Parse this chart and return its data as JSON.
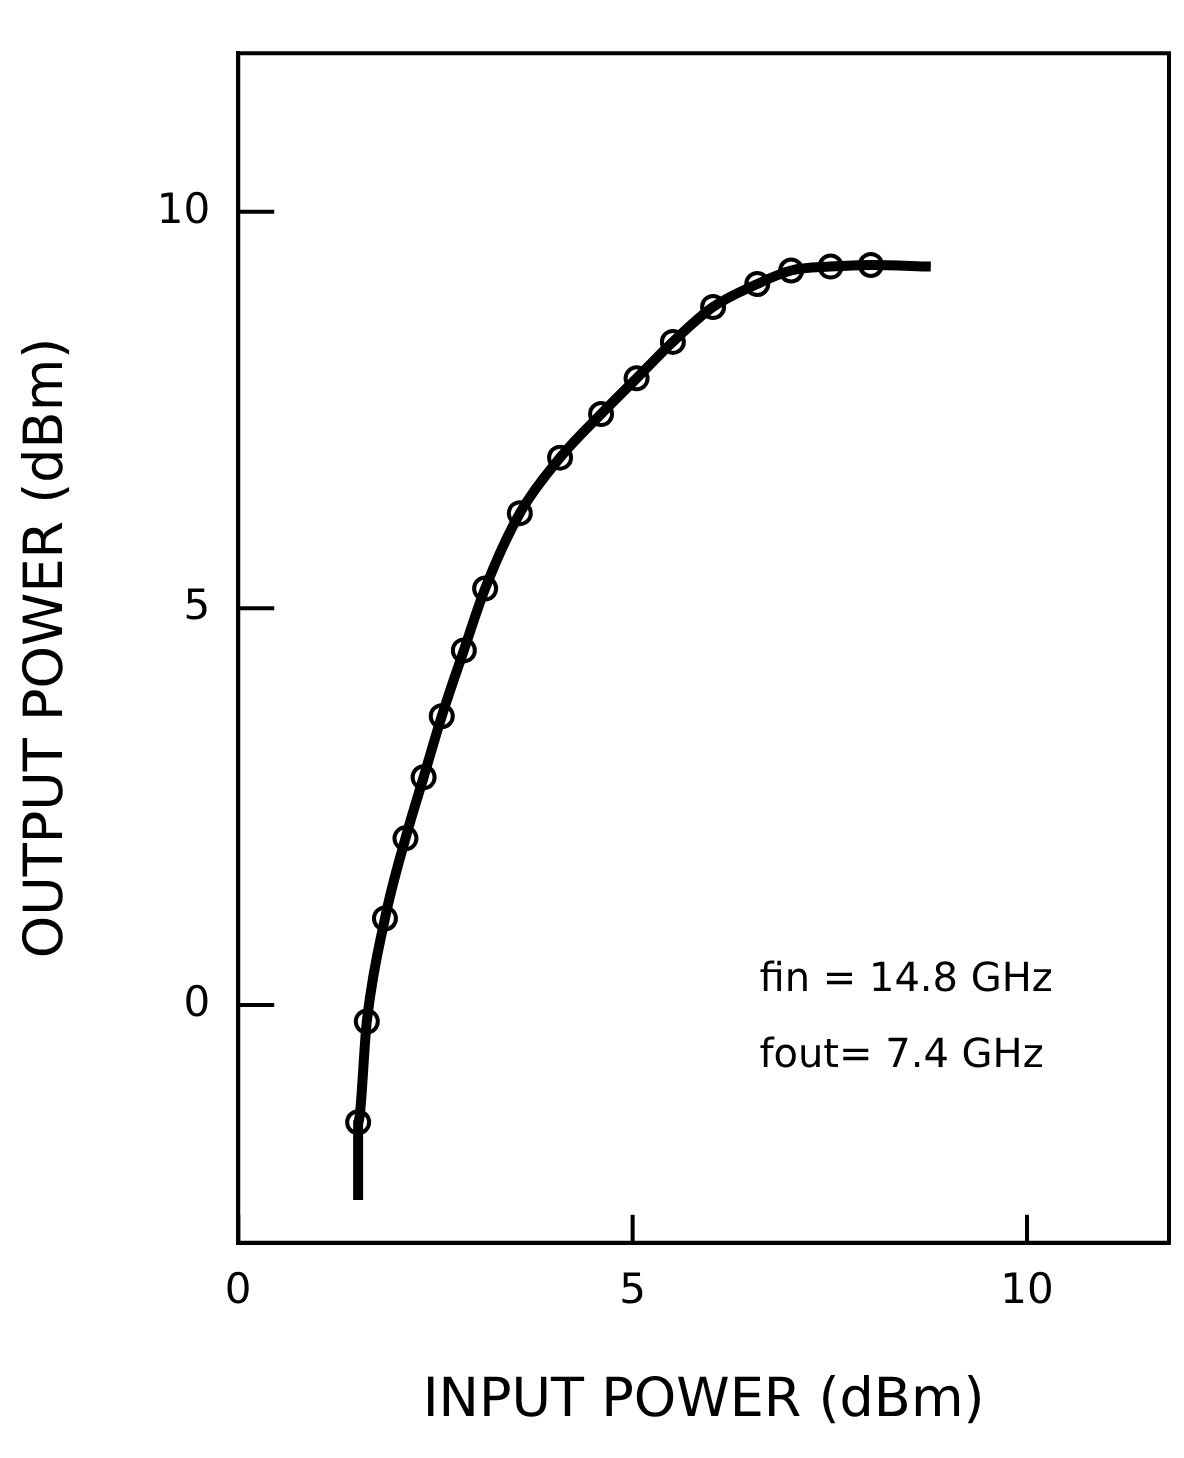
{
  "chart_data": {
    "type": "line",
    "xlabel": "INPUT POWER (dBm)",
    "ylabel": "OUTPUT POWER (dBm)",
    "xlim": [
      0,
      11.8
    ],
    "ylim": [
      -3,
      12
    ],
    "xticks": [
      0,
      5,
      10
    ],
    "yticks": [
      0,
      5,
      10
    ],
    "grid": false,
    "legend": false,
    "series": [
      {
        "type": "line",
        "color": "#000000",
        "marker": "none",
        "line_style": "solid",
        "x": [
          1.52,
          1.52,
          1.63,
          1.86,
          2.12,
          2.35,
          2.58,
          2.86,
          3.13,
          3.57,
          4.08,
          4.6,
          5.05,
          5.51,
          6.02,
          6.58,
          7.01,
          7.51,
          8.02,
          8.78
        ],
        "values": [
          -2.46,
          -1.48,
          -0.21,
          1.09,
          2.1,
          2.87,
          3.64,
          4.47,
          5.25,
          6.2,
          6.9,
          7.45,
          7.9,
          8.36,
          8.8,
          9.09,
          9.26,
          9.31,
          9.33,
          9.31
        ]
      },
      {
        "type": "scatter",
        "color": "#000000",
        "marker": "circle",
        "x": [
          1.52,
          1.63,
          1.86,
          2.12,
          2.35,
          2.58,
          2.86,
          3.13,
          3.57,
          4.08,
          4.6,
          5.05,
          5.51,
          6.02,
          6.58,
          7.01,
          7.51,
          8.02
        ],
        "values": [
          -1.48,
          -0.21,
          1.09,
          2.1,
          2.87,
          3.64,
          4.47,
          5.25,
          6.2,
          6.9,
          7.45,
          7.9,
          8.36,
          8.8,
          9.09,
          9.26,
          9.31,
          9.33
        ]
      }
    ],
    "annotations": [
      "fin = 14.8 GHz",
      "fout= 7.4 GHz"
    ]
  }
}
